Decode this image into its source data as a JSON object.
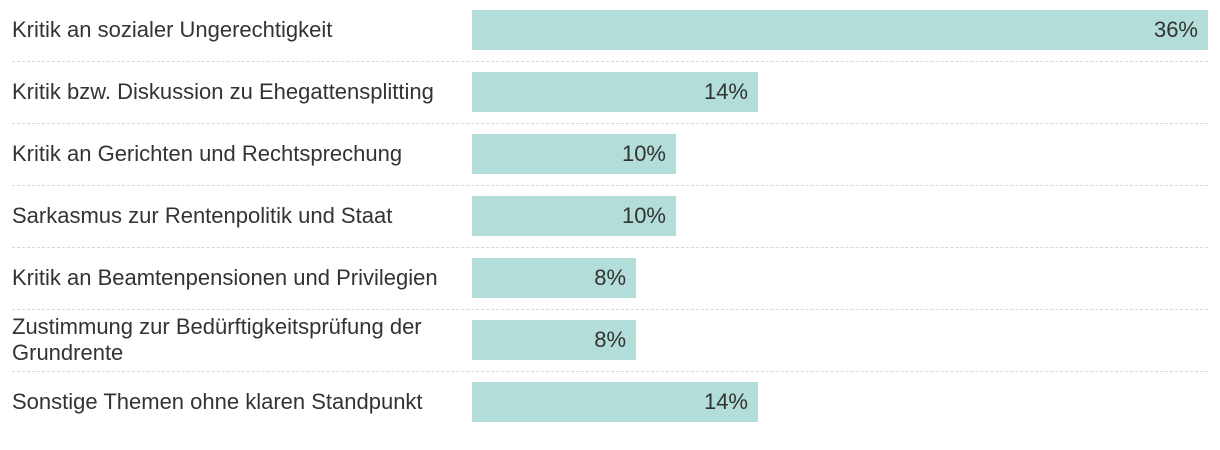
{
  "chart_data": {
    "type": "bar",
    "orientation": "horizontal",
    "title": "",
    "xlabel": "",
    "ylabel": "",
    "xlim": [
      0,
      36
    ],
    "grid": false,
    "bar_color": "#b2ddd8",
    "value_suffix": "%",
    "categories": [
      "Kritik an sozialer Ungerechtigkeit",
      "Kritik bzw. Diskussion zu Ehegattensplitting",
      "Kritik an Gerichten und Rechtsprechung",
      "Sarkasmus zur Rentenpolitik und Staat",
      "Kritik an Beamtenpensionen und Privilegien",
      "Zustimmung zur Bedürftigkeitsprüfung der Grundrente",
      "Sonstige Themen ohne klaren Standpunkt"
    ],
    "values": [
      36,
      14,
      10,
      10,
      8,
      8,
      14
    ],
    "value_labels": [
      "36%",
      "14%",
      "10%",
      "10%",
      "8%",
      "8%",
      "14%"
    ]
  }
}
